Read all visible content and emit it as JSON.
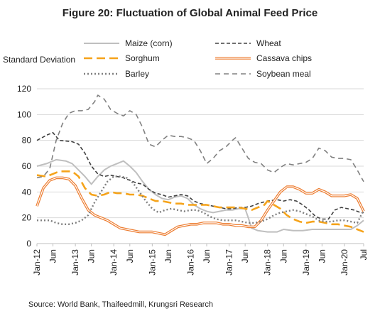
{
  "chart_data": {
    "type": "line",
    "title": "Figure 20: Fluctuation of Global Animal Feed Price",
    "ylabel": "Standard Deviation",
    "xlabel": "",
    "ylim": [
      0,
      120
    ],
    "yticks": [
      0,
      20,
      40,
      60,
      80,
      100,
      120
    ],
    "x_start": "Jan-12",
    "x_end": "Jul-20",
    "x_tick_labels": [
      "Jan-12",
      "Jun",
      "Jan-13",
      "Jun",
      "Jan-14",
      "Jun",
      "Jan-15",
      "Jun",
      "Jan-16",
      "Jun",
      "Jan-17",
      "Jun",
      "Jan-18",
      "Jun",
      "Jan-19",
      "Jun",
      "Jan-20",
      "Jul"
    ],
    "x_tick_months": [
      0,
      5,
      12,
      17,
      24,
      29,
      36,
      41,
      48,
      53,
      60,
      65,
      72,
      77,
      84,
      89,
      96,
      102
    ],
    "grid": "horizontal",
    "legend_position": "top",
    "source": "Source: World Bank, Thaifeedmill, Krungsri Research",
    "series": [
      {
        "name": "Maize (corn)",
        "color": "#bfbfbf",
        "dash": "solid",
        "width": 2,
        "points": [
          [
            0,
            60
          ],
          [
            3,
            62
          ],
          [
            6,
            65
          ],
          [
            9,
            64
          ],
          [
            11,
            62
          ],
          [
            13,
            57
          ],
          [
            15,
            52
          ],
          [
            17,
            46
          ],
          [
            19,
            52
          ],
          [
            21,
            57
          ],
          [
            23,
            60
          ],
          [
            25,
            62
          ],
          [
            27,
            64
          ],
          [
            29,
            60
          ],
          [
            31,
            55
          ],
          [
            33,
            48
          ],
          [
            35,
            42
          ],
          [
            37,
            38
          ],
          [
            39,
            35
          ],
          [
            41,
            34
          ],
          [
            43,
            36
          ],
          [
            45,
            37
          ],
          [
            47,
            35
          ],
          [
            49,
            30
          ],
          [
            51,
            27
          ],
          [
            53,
            25
          ],
          [
            55,
            24
          ],
          [
            57,
            25
          ],
          [
            59,
            26
          ],
          [
            61,
            26
          ],
          [
            63,
            27
          ],
          [
            65,
            27
          ],
          [
            66,
            20
          ],
          [
            67,
            12
          ],
          [
            69,
            10
          ],
          [
            72,
            9
          ],
          [
            75,
            9
          ],
          [
            77,
            11
          ],
          [
            80,
            10
          ],
          [
            83,
            10
          ],
          [
            86,
            11
          ],
          [
            89,
            11
          ],
          [
            92,
            11
          ],
          [
            95,
            11
          ],
          [
            98,
            11
          ],
          [
            100,
            14
          ],
          [
            102,
            18
          ]
        ]
      },
      {
        "name": "Wheat",
        "color": "#404040",
        "dash": "5 3",
        "width": 1.6,
        "points": [
          [
            0,
            80
          ],
          [
            3,
            84
          ],
          [
            5,
            86
          ],
          [
            7,
            80
          ],
          [
            11,
            79
          ],
          [
            13,
            77
          ],
          [
            15,
            70
          ],
          [
            17,
            60
          ],
          [
            19,
            54
          ],
          [
            21,
            52
          ],
          [
            23,
            53
          ],
          [
            25,
            52
          ],
          [
            27,
            51
          ],
          [
            29,
            49
          ],
          [
            31,
            47
          ],
          [
            33,
            46
          ],
          [
            35,
            42
          ],
          [
            37,
            39
          ],
          [
            39,
            38
          ],
          [
            41,
            36
          ],
          [
            43,
            37
          ],
          [
            45,
            38
          ],
          [
            47,
            37
          ],
          [
            49,
            33
          ],
          [
            51,
            31
          ],
          [
            53,
            30
          ],
          [
            55,
            29
          ],
          [
            57,
            28
          ],
          [
            59,
            27
          ],
          [
            61,
            27
          ],
          [
            63,
            28
          ],
          [
            65,
            28
          ],
          [
            67,
            29
          ],
          [
            69,
            31
          ],
          [
            72,
            33
          ],
          [
            75,
            34
          ],
          [
            77,
            33
          ],
          [
            79,
            34
          ],
          [
            81,
            33
          ],
          [
            83,
            30
          ],
          [
            85,
            26
          ],
          [
            87,
            21
          ],
          [
            89,
            19
          ],
          [
            91,
            19
          ],
          [
            93,
            26
          ],
          [
            95,
            28
          ],
          [
            97,
            27
          ],
          [
            99,
            26
          ],
          [
            101,
            24
          ],
          [
            102,
            24
          ]
        ]
      },
      {
        "name": "Sorghum",
        "color": "#f5a31a",
        "dash": "12 6",
        "width": 2.6,
        "points": [
          [
            0,
            53
          ],
          [
            3,
            52
          ],
          [
            5,
            54
          ],
          [
            7,
            56
          ],
          [
            9,
            56
          ],
          [
            11,
            56
          ],
          [
            13,
            52
          ],
          [
            15,
            43
          ],
          [
            17,
            38
          ],
          [
            19,
            37
          ],
          [
            21,
            38
          ],
          [
            23,
            40
          ],
          [
            25,
            39
          ],
          [
            27,
            39
          ],
          [
            29,
            38
          ],
          [
            31,
            38
          ],
          [
            33,
            37
          ],
          [
            35,
            35
          ],
          [
            37,
            33
          ],
          [
            39,
            33
          ],
          [
            41,
            32
          ],
          [
            43,
            31
          ],
          [
            45,
            31
          ],
          [
            47,
            30
          ],
          [
            49,
            30
          ],
          [
            51,
            30
          ],
          [
            53,
            30
          ],
          [
            55,
            29
          ],
          [
            57,
            28
          ],
          [
            59,
            28
          ],
          [
            61,
            28
          ],
          [
            63,
            28
          ],
          [
            65,
            27
          ],
          [
            67,
            26
          ],
          [
            69,
            28
          ],
          [
            71,
            30
          ],
          [
            72,
            33
          ],
          [
            74,
            30
          ],
          [
            76,
            27
          ],
          [
            78,
            22
          ],
          [
            80,
            19
          ],
          [
            82,
            17
          ],
          [
            84,
            16
          ],
          [
            86,
            17
          ],
          [
            88,
            17
          ],
          [
            90,
            16
          ],
          [
            92,
            15
          ],
          [
            94,
            15
          ],
          [
            96,
            14
          ],
          [
            98,
            13
          ],
          [
            100,
            11
          ],
          [
            102,
            9
          ]
        ]
      },
      {
        "name": "Cassava chips",
        "color": "#ed7d31",
        "dash": "double",
        "width": 3.6,
        "points": [
          [
            0,
            29
          ],
          [
            2,
            43
          ],
          [
            4,
            49
          ],
          [
            6,
            51
          ],
          [
            8,
            51
          ],
          [
            10,
            50
          ],
          [
            12,
            45
          ],
          [
            14,
            35
          ],
          [
            16,
            26
          ],
          [
            18,
            22
          ],
          [
            20,
            20
          ],
          [
            22,
            18
          ],
          [
            24,
            15
          ],
          [
            26,
            12
          ],
          [
            28,
            11
          ],
          [
            30,
            10
          ],
          [
            32,
            9
          ],
          [
            34,
            9
          ],
          [
            36,
            9
          ],
          [
            38,
            8
          ],
          [
            40,
            7
          ],
          [
            42,
            10
          ],
          [
            44,
            13
          ],
          [
            46,
            14
          ],
          [
            48,
            15
          ],
          [
            50,
            15
          ],
          [
            52,
            16
          ],
          [
            54,
            16
          ],
          [
            56,
            16
          ],
          [
            58,
            15
          ],
          [
            60,
            15
          ],
          [
            62,
            14
          ],
          [
            64,
            14
          ],
          [
            66,
            13
          ],
          [
            68,
            13
          ],
          [
            70,
            18
          ],
          [
            72,
            26
          ],
          [
            74,
            33
          ],
          [
            76,
            40
          ],
          [
            78,
            44
          ],
          [
            80,
            44
          ],
          [
            82,
            42
          ],
          [
            84,
            39
          ],
          [
            86,
            39
          ],
          [
            88,
            42
          ],
          [
            90,
            40
          ],
          [
            92,
            37
          ],
          [
            94,
            37
          ],
          [
            96,
            37
          ],
          [
            98,
            38
          ],
          [
            100,
            35
          ],
          [
            102,
            25
          ]
        ]
      },
      {
        "name": "Barley",
        "color": "#7f7f7f",
        "dash": "2 3",
        "width": 2.4,
        "points": [
          [
            0,
            18
          ],
          [
            2,
            18
          ],
          [
            4,
            18
          ],
          [
            6,
            16
          ],
          [
            8,
            15
          ],
          [
            10,
            15
          ],
          [
            12,
            16
          ],
          [
            14,
            18
          ],
          [
            16,
            22
          ],
          [
            18,
            32
          ],
          [
            20,
            40
          ],
          [
            22,
            48
          ],
          [
            24,
            52
          ],
          [
            26,
            52
          ],
          [
            28,
            51
          ],
          [
            30,
            47
          ],
          [
            32,
            40
          ],
          [
            34,
            33
          ],
          [
            36,
            27
          ],
          [
            38,
            24
          ],
          [
            40,
            26
          ],
          [
            42,
            27
          ],
          [
            44,
            26
          ],
          [
            46,
            25
          ],
          [
            48,
            26
          ],
          [
            50,
            26
          ],
          [
            52,
            24
          ],
          [
            54,
            21
          ],
          [
            56,
            19
          ],
          [
            58,
            18
          ],
          [
            60,
            18
          ],
          [
            62,
            18
          ],
          [
            64,
            17
          ],
          [
            66,
            16
          ],
          [
            68,
            16
          ],
          [
            70,
            17
          ],
          [
            72,
            19
          ],
          [
            74,
            22
          ],
          [
            76,
            24
          ],
          [
            78,
            25
          ],
          [
            80,
            26
          ],
          [
            82,
            25
          ],
          [
            84,
            23
          ],
          [
            86,
            21
          ],
          [
            88,
            18
          ],
          [
            90,
            17
          ],
          [
            92,
            17
          ],
          [
            94,
            18
          ],
          [
            96,
            18
          ],
          [
            98,
            17
          ],
          [
            100,
            16
          ],
          [
            102,
            26
          ]
        ]
      },
      {
        "name": "Soybean meal",
        "color": "#808080",
        "dash": "7 5",
        "width": 1.6,
        "points": [
          [
            0,
            51
          ],
          [
            2,
            52
          ],
          [
            4,
            58
          ],
          [
            6,
            80
          ],
          [
            8,
            93
          ],
          [
            10,
            101
          ],
          [
            12,
            103
          ],
          [
            14,
            103
          ],
          [
            16,
            104
          ],
          [
            18,
            110
          ],
          [
            19,
            115
          ],
          [
            21,
            112
          ],
          [
            23,
            104
          ],
          [
            25,
            101
          ],
          [
            27,
            99
          ],
          [
            29,
            103
          ],
          [
            31,
            100
          ],
          [
            33,
            90
          ],
          [
            35,
            77
          ],
          [
            37,
            75
          ],
          [
            39,
            80
          ],
          [
            41,
            84
          ],
          [
            43,
            83
          ],
          [
            45,
            83
          ],
          [
            47,
            82
          ],
          [
            49,
            80
          ],
          [
            51,
            72
          ],
          [
            53,
            62
          ],
          [
            55,
            66
          ],
          [
            57,
            72
          ],
          [
            59,
            75
          ],
          [
            61,
            80
          ],
          [
            62,
            82
          ],
          [
            64,
            74
          ],
          [
            66,
            66
          ],
          [
            68,
            63
          ],
          [
            70,
            62
          ],
          [
            72,
            57
          ],
          [
            74,
            55
          ],
          [
            76,
            59
          ],
          [
            78,
            62
          ],
          [
            80,
            61
          ],
          [
            82,
            62
          ],
          [
            84,
            63
          ],
          [
            86,
            66
          ],
          [
            88,
            74
          ],
          [
            90,
            72
          ],
          [
            92,
            67
          ],
          [
            94,
            66
          ],
          [
            96,
            66
          ],
          [
            98,
            65
          ],
          [
            100,
            57
          ],
          [
            102,
            48
          ]
        ]
      }
    ]
  }
}
